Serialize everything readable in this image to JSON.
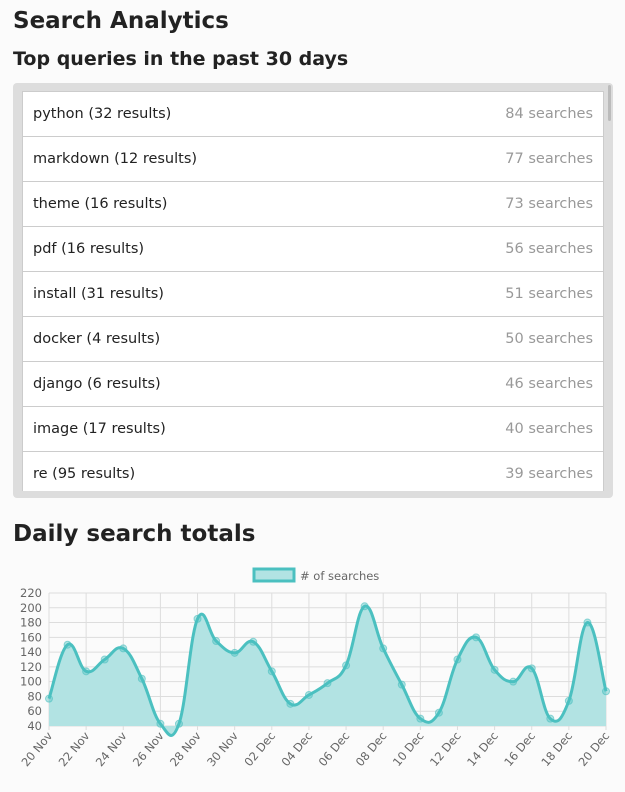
{
  "title": "Search Analytics",
  "subtitle": "Top queries in the past 30 days",
  "queries": [
    {
      "label": "python (32 results)",
      "count": "84 searches"
    },
    {
      "label": "markdown (12 results)",
      "count": "77 searches"
    },
    {
      "label": "theme (16 results)",
      "count": "73 searches"
    },
    {
      "label": "pdf (16 results)",
      "count": "56 searches"
    },
    {
      "label": "install (31 results)",
      "count": "51 searches"
    },
    {
      "label": "docker (4 results)",
      "count": "50 searches"
    },
    {
      "label": "django (6 results)",
      "count": "46 searches"
    },
    {
      "label": "image (17 results)",
      "count": "40 searches"
    },
    {
      "label": "re (95 results)",
      "count": "39 searches"
    }
  ],
  "daily_title": "Daily search totals",
  "chart_data": {
    "type": "area",
    "legend": "# of searches",
    "legend_position": "top",
    "color": "#4bc0c0",
    "fill": "#b2e3e3",
    "grid": true,
    "ylim": [
      40,
      220
    ],
    "yticks": [
      40,
      60,
      80,
      100,
      120,
      140,
      160,
      180,
      200,
      220
    ],
    "x": [
      "20 Nov",
      "21 Nov",
      "22 Nov",
      "23 Nov",
      "24 Nov",
      "25 Nov",
      "26 Nov",
      "27 Nov",
      "28 Nov",
      "29 Nov",
      "30 Nov",
      "01 Dec",
      "02 Dec",
      "03 Dec",
      "04 Dec",
      "05 Dec",
      "06 Dec",
      "07 Dec",
      "08 Dec",
      "09 Dec",
      "10 Dec",
      "11 Dec",
      "12 Dec",
      "13 Dec",
      "14 Dec",
      "15 Dec",
      "16 Dec",
      "17 Dec",
      "18 Dec",
      "19 Dec",
      "20 Dec"
    ],
    "xticks": [
      "20 Nov",
      "22 Nov",
      "24 Nov",
      "26 Nov",
      "28 Nov",
      "30 Nov",
      "02 Dec",
      "04 Dec",
      "06 Dec",
      "08 Dec",
      "10 Dec",
      "12 Dec",
      "14 Dec",
      "16 Dec",
      "18 Dec",
      "20 Dec"
    ],
    "values": [
      77,
      150,
      114,
      130,
      145,
      104,
      43,
      43,
      185,
      155,
      139,
      154,
      114,
      70,
      82,
      98,
      122,
      202,
      145,
      96,
      50,
      58,
      130,
      160,
      116,
      100,
      118,
      50,
      74,
      180,
      87
    ]
  }
}
